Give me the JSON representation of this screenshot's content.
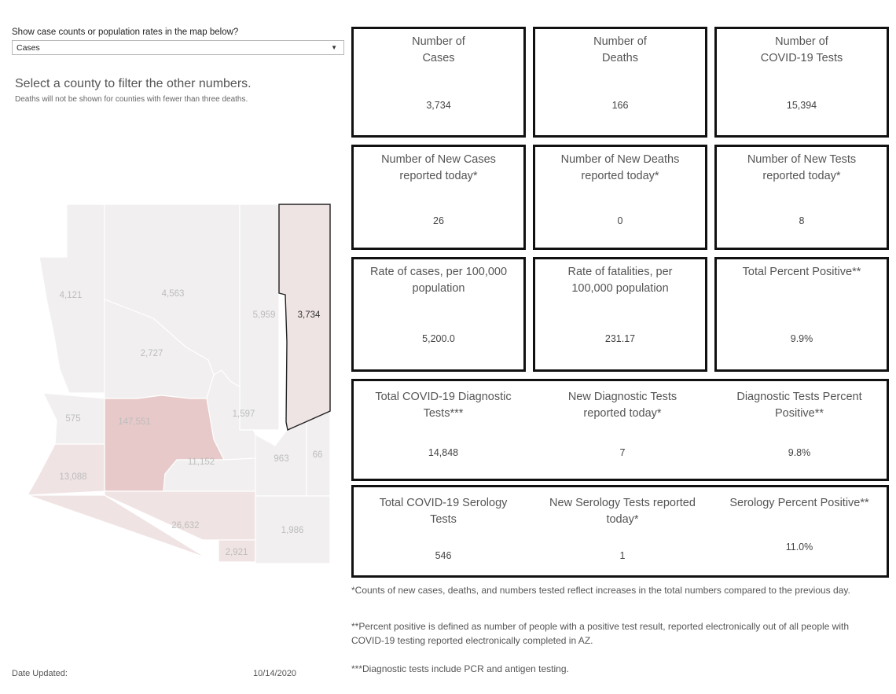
{
  "filter": {
    "label": "Show case counts or population rates in the map below?",
    "selected": "Cases"
  },
  "instructions": {
    "title": "Select a county to filter the other numbers.",
    "note": "Deaths will not be shown for counties with fewer than three deaths."
  },
  "map": {
    "selected_county_value": "3,734",
    "county_labels": [
      "4,121",
      "4,563",
      "5,959",
      "3,734",
      "2,727",
      "1,597",
      "575",
      "147,551",
      "11,152",
      "963",
      "66",
      "13,088",
      "26,632",
      "1,986",
      "2,921"
    ],
    "colors": {
      "base": "#f1efef",
      "selected": "#efe4e4",
      "light_pink": "#f0e3e3",
      "highlight": "#e8c9c9",
      "selected_border": "#222222"
    }
  },
  "tiles": [
    {
      "title": "Number of\nCases",
      "value": "3,734"
    },
    {
      "title": "Number of\nDeaths",
      "value": "166"
    },
    {
      "title": "Number of\nCOVID-19 Tests",
      "value": "15,394"
    },
    {
      "title": "Number of New Cases\nreported today*",
      "value": "26"
    },
    {
      "title": "Number of New Deaths\nreported today*",
      "value": "0"
    },
    {
      "title": "Number of New Tests\nreported today*",
      "value": "8"
    },
    {
      "title": "Rate of cases, per 100,000\npopulation",
      "value": "5,200.0"
    },
    {
      "title": "Rate of fatalities, per\n100,000 population",
      "value": "231.17"
    },
    {
      "title": "Total Percent Positive**",
      "value": "9.9%"
    }
  ],
  "diagnostic": [
    {
      "title": "Total COVID-19 Diagnostic\nTests***",
      "value": "14,848"
    },
    {
      "title": "New Diagnostic Tests\nreported today*",
      "value": "7"
    },
    {
      "title": "Diagnostic Tests Percent\nPositive**",
      "value": "9.8%"
    }
  ],
  "serology": [
    {
      "title": "Total COVID-19 Serology\nTests",
      "value": "546"
    },
    {
      "title": "New Serology Tests reported\ntoday*",
      "value": "1"
    },
    {
      "title": "Serology Percent Positive**",
      "value": "11.0%"
    }
  ],
  "footnotes": [
    "*Counts of new cases, deaths, and numbers tested reflect increases in the total numbers compared to the previous day.",
    "**Percent positive is defined as number of people with a positive test result, reported electronically out of all people with COVID-19 testing reported electronically completed in AZ.",
    "***Diagnostic tests include PCR and antigen testing."
  ],
  "date": {
    "label": "Date Updated:",
    "value": "10/14/2020"
  }
}
